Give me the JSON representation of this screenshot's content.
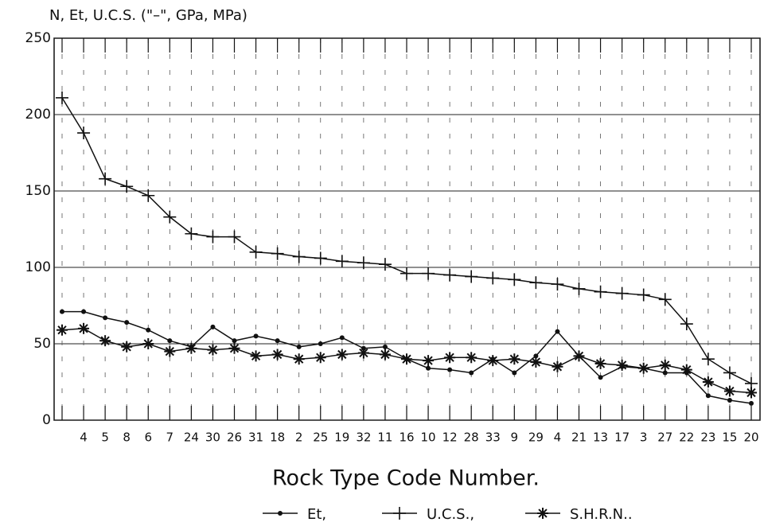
{
  "chart_data": {
    "type": "line",
    "title": "N, Et, U.C.S. (\"–\", GPa, MPa)",
    "x_label": "Rock Type Code Number.",
    "categories": [
      null,
      "4",
      "5",
      "8",
      "6",
      "7",
      "24",
      "30",
      "26",
      "31",
      "18",
      "2",
      "25",
      "19",
      "32",
      "11",
      "16",
      "10",
      "12",
      "28",
      "33",
      "9",
      "29",
      "4",
      "21",
      "13",
      "17",
      "3",
      "27",
      "22",
      "23",
      "15",
      "20"
    ],
    "series": [
      {
        "name": "Et,",
        "color": "#111111",
        "marker": "dot",
        "values": [
          71,
          71,
          67,
          64,
          59,
          52,
          48,
          61,
          52,
          55,
          52,
          48,
          50,
          54,
          47,
          48,
          40,
          34,
          33,
          31,
          40,
          31,
          42,
          58,
          42,
          28,
          35,
          34,
          31,
          31,
          16,
          13,
          11
        ]
      },
      {
        "name": "U.C.S.,",
        "color": "#111111",
        "marker": "plus",
        "values": [
          211,
          188,
          158,
          153,
          147,
          133,
          122,
          120,
          120,
          110,
          109,
          107,
          106,
          104,
          103,
          102,
          96,
          96,
          95,
          94,
          93,
          92,
          90,
          89,
          86,
          84,
          83,
          82,
          79,
          63,
          40,
          31,
          24
        ]
      },
      {
        "name": "S.H.R.N..",
        "color": "#111111",
        "marker": "star",
        "values": [
          59,
          60,
          52,
          48,
          50,
          45,
          47,
          46,
          47,
          42,
          43,
          40,
          41,
          43,
          44,
          43,
          40,
          39,
          41,
          41,
          39,
          40,
          38,
          35,
          42,
          37,
          36,
          34,
          36,
          33,
          25,
          19,
          18
        ]
      }
    ],
    "ylim": [
      0,
      250
    ],
    "yticks": [
      0,
      50,
      100,
      150,
      200,
      250
    ],
    "grid": true
  }
}
